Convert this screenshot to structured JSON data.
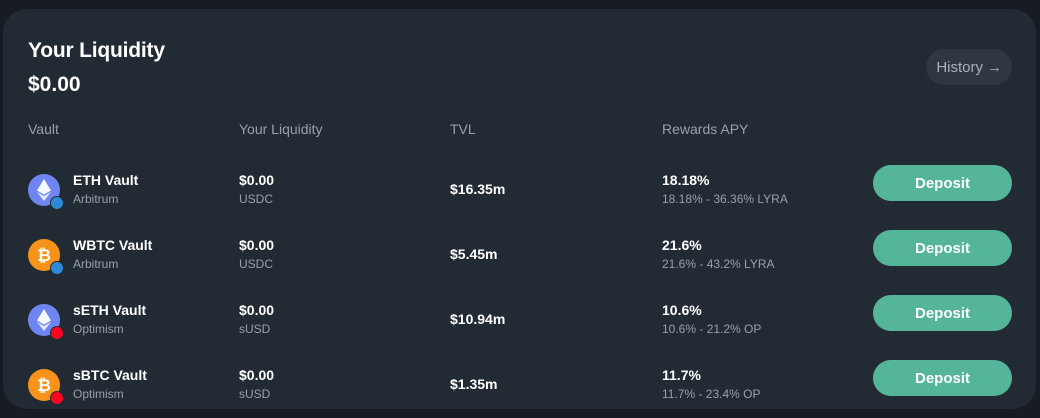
{
  "header": {
    "title": "Your Liquidity",
    "total": "$0.00",
    "history_label": "History",
    "history_arrow": "→"
  },
  "columns": {
    "vault": "Vault",
    "liquidity": "Your Liquidity",
    "tvl": "TVL",
    "apy": "Rewards APY"
  },
  "colors": {
    "eth": "#6f86f2",
    "btc": "#f7931a",
    "arbitrum": "#2d8ad6",
    "optimism": "#ff0420",
    "deposit": "#55b59b"
  },
  "rows": [
    {
      "name": "ETH Vault",
      "chain": "Arbitrum",
      "token_icon": "eth-icon",
      "chain_icon": "arbitrum-icon",
      "liquidity": "$0.00",
      "unit": "USDC",
      "tvl": "$16.35m",
      "apy": "18.18%",
      "apy_range": "18.18% - 36.36% LYRA",
      "deposit_label": "Deposit"
    },
    {
      "name": "WBTC Vault",
      "chain": "Arbitrum",
      "token_icon": "btc-icon",
      "chain_icon": "arbitrum-icon",
      "liquidity": "$0.00",
      "unit": "USDC",
      "tvl": "$5.45m",
      "apy": "21.6%",
      "apy_range": "21.6% - 43.2% LYRA",
      "deposit_label": "Deposit"
    },
    {
      "name": "sETH Vault",
      "chain": "Optimism",
      "token_icon": "eth-icon",
      "chain_icon": "optimism-icon",
      "liquidity": "$0.00",
      "unit": "sUSD",
      "tvl": "$10.94m",
      "apy": "10.6%",
      "apy_range": "10.6% - 21.2% OP",
      "deposit_label": "Deposit"
    },
    {
      "name": "sBTC Vault",
      "chain": "Optimism",
      "token_icon": "btc-icon",
      "chain_icon": "optimism-icon",
      "liquidity": "$0.00",
      "unit": "sUSD",
      "tvl": "$1.35m",
      "apy": "11.7%",
      "apy_range": "11.7% - 23.4% OP",
      "deposit_label": "Deposit"
    }
  ]
}
